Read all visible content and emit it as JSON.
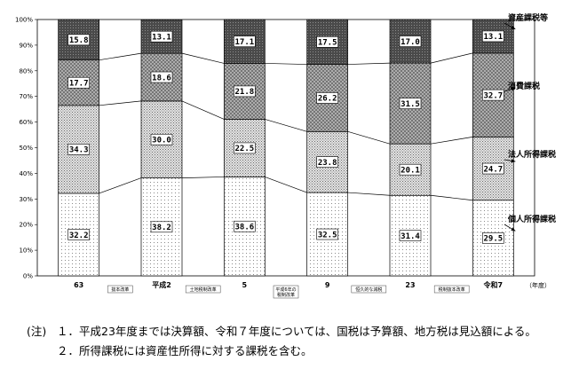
{
  "chart_data": {
    "type": "bar",
    "stacked": true,
    "y_unit_percent": true,
    "ylim": [
      0,
      100
    ],
    "yticks": [
      "0%",
      "10%",
      "20%",
      "30%",
      "40%",
      "50%",
      "60%",
      "70%",
      "80%",
      "90%",
      "100%"
    ],
    "categories": [
      "63",
      "平成2",
      "5",
      "9",
      "23",
      "令和7"
    ],
    "x_unit": "（年度）",
    "reforms": [
      "抜本改革",
      "土地税制改革",
      "平成6年の税制改革",
      "恒久的な減税",
      "税制抜本改革"
    ],
    "series": [
      {
        "name": "個人所得課税",
        "values": [
          "32.2",
          "38.2",
          "38.6",
          "32.5",
          "31.4",
          "29.5"
        ],
        "pattern": "sparse-dots"
      },
      {
        "name": "法人所得課税",
        "values": [
          "34.3",
          "30.0",
          "22.5",
          "23.8",
          "20.1",
          "24.7"
        ],
        "pattern": "dense-dots"
      },
      {
        "name": "消費課税",
        "values": [
          "17.7",
          "18.6",
          "21.8",
          "26.2",
          "31.5",
          "32.7"
        ],
        "pattern": "crosshatch"
      },
      {
        "name": "資産課税等",
        "values": [
          "15.8",
          "13.1",
          "17.1",
          "17.5",
          "17.0",
          "13.1"
        ],
        "pattern": "dark"
      }
    ],
    "legend_position": "right"
  },
  "notes": {
    "label": "(注)",
    "items": [
      "１．平成23年度までは決算額、令和７年度については、国税は予算額、地方税は見込額による。",
      "２．所得課税には資産性所得に対する課税を含む。"
    ]
  }
}
